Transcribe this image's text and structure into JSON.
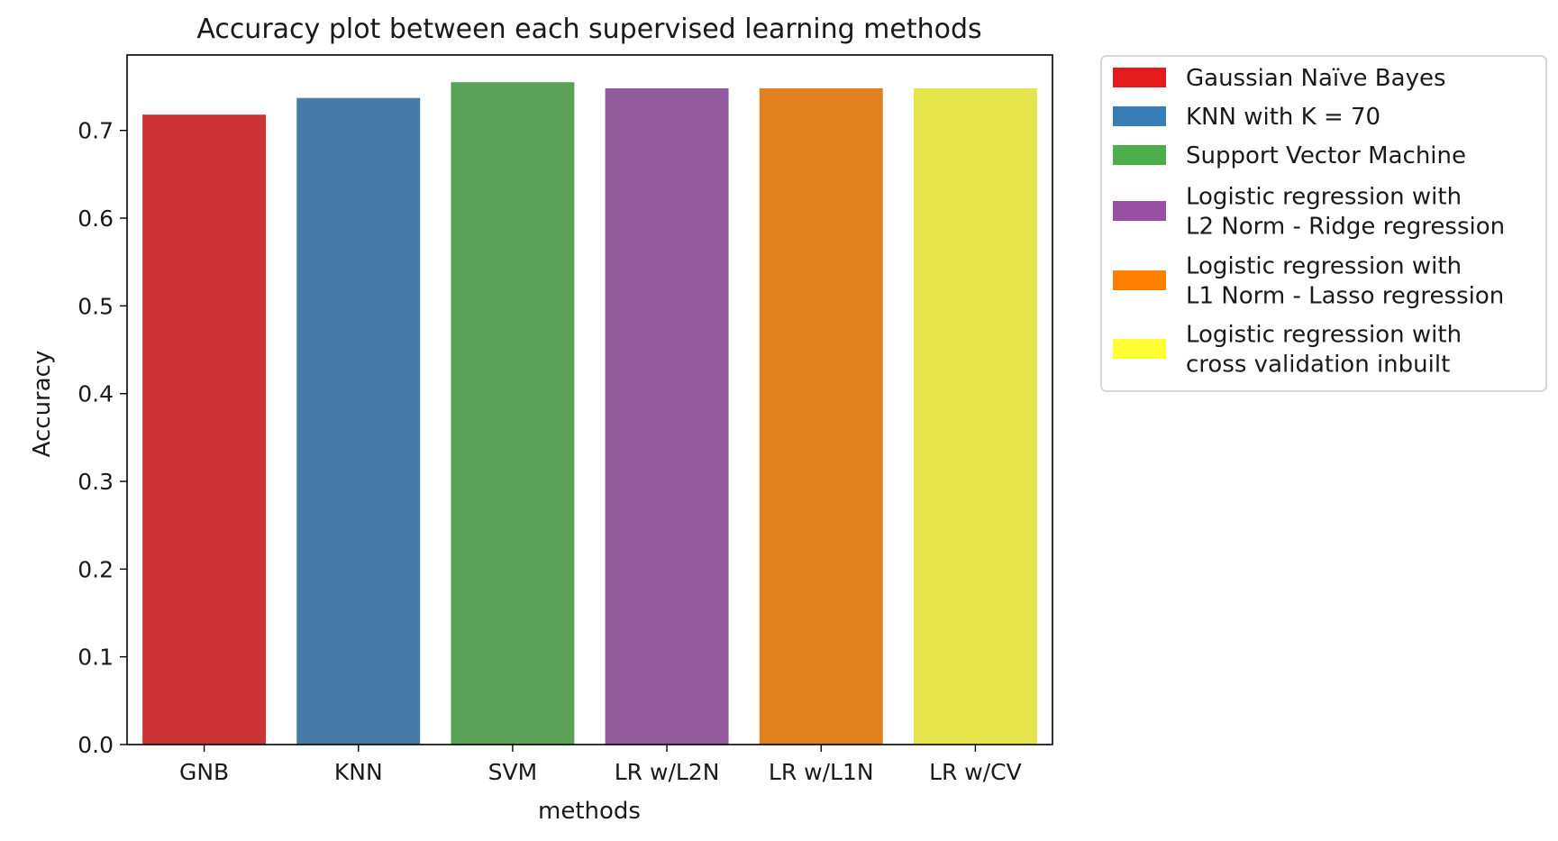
{
  "chart_data": {
    "type": "bar",
    "title": "Accuracy plot between each supervised learning methods",
    "xlabel": "methods",
    "ylabel": "Accuracy",
    "categories": [
      "GNB",
      "KNN",
      "SVM",
      "LR w/L2N",
      "LR w/L1N",
      "LR w/CV"
    ],
    "values": [
      0.718,
      0.737,
      0.755,
      0.748,
      0.748,
      0.748
    ],
    "bar_colors": [
      "#cb3335",
      "#477ca8",
      "#59a257",
      "#905a9b",
      "#e0801f",
      "#e6e64c"
    ],
    "ylim": [
      0,
      0.786
    ],
    "yticks": [
      "0.0",
      "0.1",
      "0.2",
      "0.3",
      "0.4",
      "0.5",
      "0.6",
      "0.7"
    ],
    "grid": false,
    "legend_placement": "outside-top-right",
    "legend": [
      {
        "lines": [
          "Gaussian Naïve Bayes"
        ],
        "color": "#e41a1c"
      },
      {
        "lines": [
          "KNN with K = 70"
        ],
        "color": "#377eb8"
      },
      {
        "lines": [
          "Support Vector Machine"
        ],
        "color": "#4daf4a"
      },
      {
        "lines": [
          "Logistic regression with",
          "L2 Norm - Ridge regression"
        ],
        "color": "#984ea3"
      },
      {
        "lines": [
          "Logistic regression with",
          "L1 Norm - Lasso regression"
        ],
        "color": "#ff7f00"
      },
      {
        "lines": [
          "Logistic regression with",
          "cross validation inbuilt"
        ],
        "color": "#ffff33"
      }
    ]
  }
}
